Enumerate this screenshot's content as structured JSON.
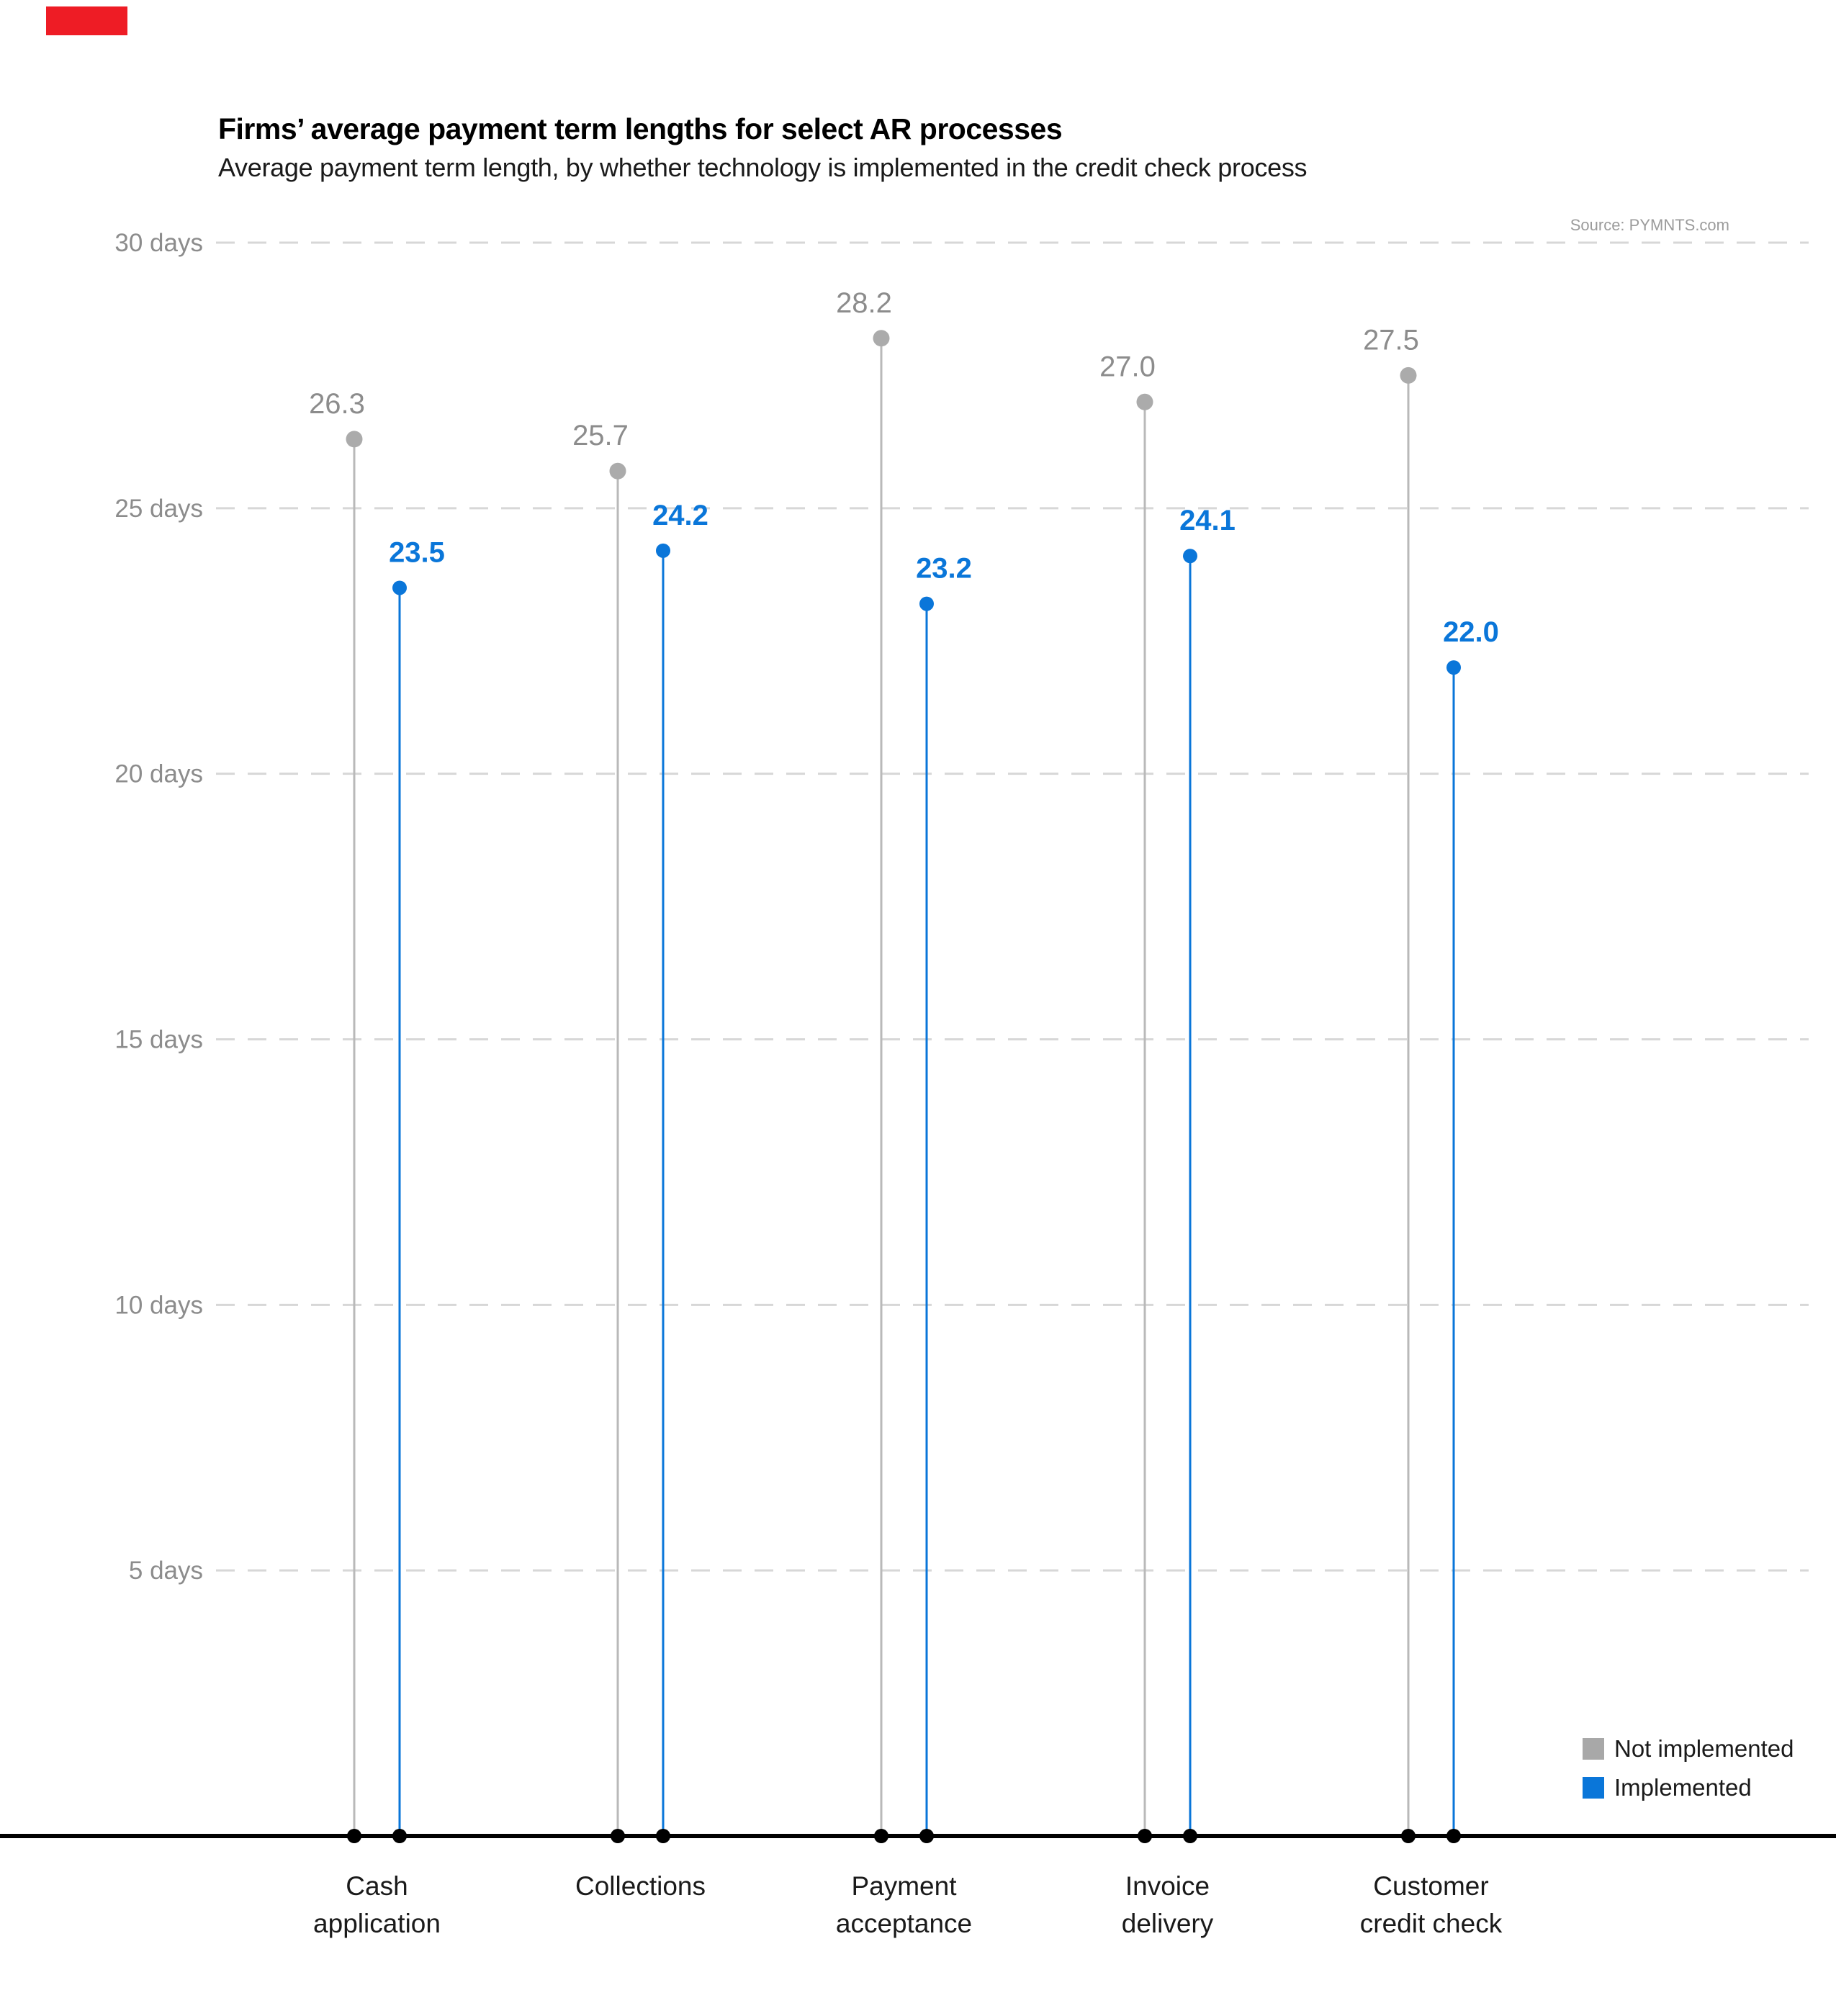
{
  "page": {
    "background": "#ffffff",
    "brand_mark_color": "#ee1c25"
  },
  "header": {
    "title": "Firms’ average payment term lengths for select AR processes",
    "subtitle": "Average payment term length, by whether technology is implemented in the credit check process",
    "source": "Source: PYMNTS.com"
  },
  "legend": {
    "position": "bottom-right",
    "items": [
      {
        "label": "Not implemented",
        "color": "#a8a8a8"
      },
      {
        "label": "Implemented",
        "color": "#0a76d9"
      }
    ]
  },
  "chart_data": {
    "type": "scatter",
    "variant": "grouped-lollipop",
    "title": "Firms’ average payment term lengths for select AR processes",
    "subtitle": "Average payment term length, by whether technology is implemented in the credit check process",
    "xlabel": "",
    "ylabel": "",
    "categories": [
      "Cash application",
      "Collections",
      "Payment acceptance",
      "Invoice delivery",
      "Customer credit check"
    ],
    "series": [
      {
        "name": "Not implemented",
        "color": "#ababab",
        "stem_color": "#b9b9b9",
        "label_color": "#8c8c8c",
        "label_weight": "normal",
        "values": [
          26.3,
          25.7,
          28.2,
          27.0,
          27.5
        ]
      },
      {
        "name": "Implemented",
        "color": "#0a76d9",
        "stem_color": "#0a76d9",
        "label_color": "#0a76d9",
        "label_weight": "bold",
        "values": [
          23.5,
          24.2,
          23.2,
          24.1,
          22.0
        ]
      }
    ],
    "ylim": [
      0,
      30
    ],
    "yticks": [
      {
        "value": 30,
        "label": "30 days"
      },
      {
        "value": 25,
        "label": "25 days"
      },
      {
        "value": 20,
        "label": "20 days"
      },
      {
        "value": 15,
        "label": "15 days"
      },
      {
        "value": 10,
        "label": "10 days"
      },
      {
        "value": 5,
        "label": "5 days"
      }
    ],
    "value_format": "one-decimal",
    "grid": "dashed-horizontal",
    "gridline_color": "#d7d7d7",
    "axis_color": "#000000",
    "baseline_marker_color": "#000000",
    "tick_label_color": "#8c8c8c",
    "category_label_color": "#1a1a1a",
    "legend_position": "bottom-right"
  }
}
